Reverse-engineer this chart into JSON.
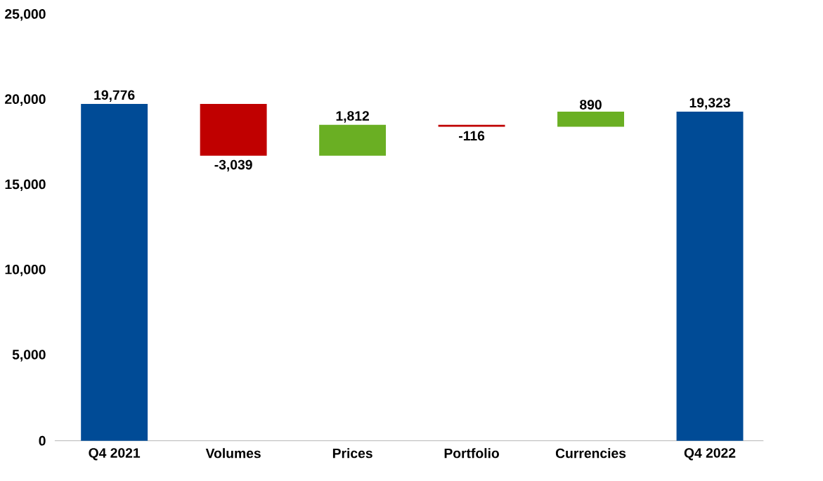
{
  "chart_data": {
    "type": "bar",
    "categories": [
      "Q4 2021",
      "Volumes",
      "Prices",
      "Portfolio",
      "Currencies",
      "Q4 2022"
    ],
    "values": [
      19776,
      -3039,
      1812,
      -116,
      890,
      19323
    ],
    "base": [
      0,
      19776,
      16737,
      18549,
      18433,
      0
    ],
    "colors": [
      "#004b96",
      "#c00000",
      "#6aaf23",
      "#c00000",
      "#6aaf23",
      "#004b96"
    ],
    "value_labels": [
      "19,776",
      "-3,039",
      "1,812",
      "-116",
      "890",
      "19,323"
    ],
    "ylim": [
      0,
      25000
    ],
    "yticks": [
      {
        "value": 0,
        "label": "0"
      },
      {
        "value": 5000,
        "label": "5,000"
      },
      {
        "value": 10000,
        "label": "10,000"
      },
      {
        "value": 15000,
        "label": "15,000"
      },
      {
        "value": 20000,
        "label": "20,000"
      },
      {
        "value": 25000,
        "label": "25,000"
      }
    ]
  }
}
